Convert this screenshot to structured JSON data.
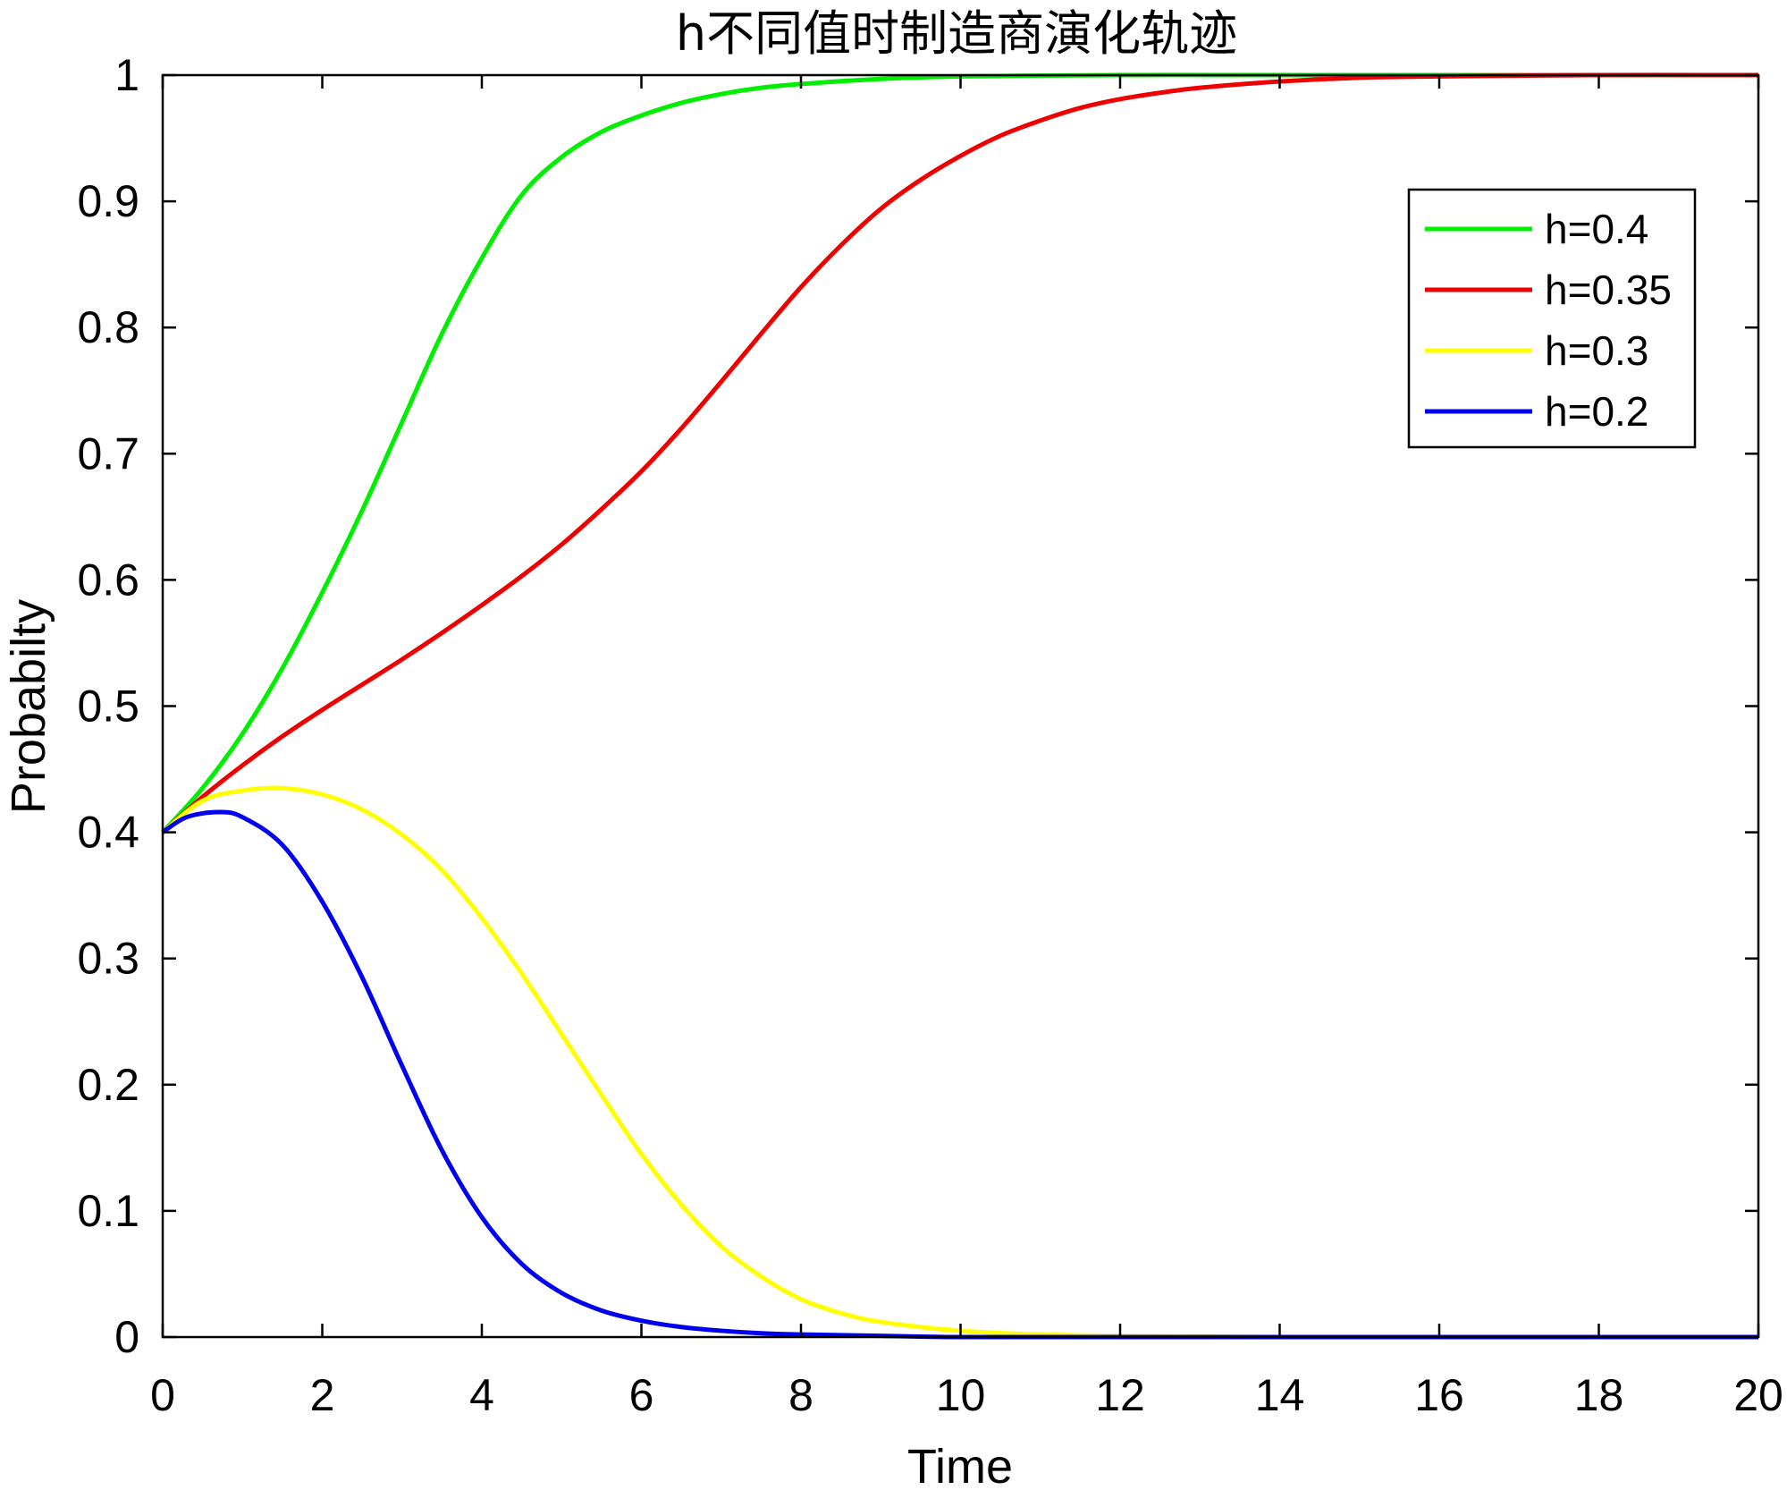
{
  "chart_data": {
    "type": "line",
    "title": "h不同值时制造商演化轨迹",
    "xlabel": "Time",
    "ylabel": "Probabilty",
    "xlim": [
      0,
      20
    ],
    "ylim": [
      0,
      1
    ],
    "x_ticks": [
      0,
      2,
      4,
      6,
      8,
      10,
      12,
      14,
      16,
      18,
      20
    ],
    "x_tick_labels": [
      "0",
      "2",
      "4",
      "6",
      "8",
      "10",
      "12",
      "14",
      "16",
      "18",
      "20"
    ],
    "y_ticks": [
      0,
      0.1,
      0.2,
      0.3,
      0.4,
      0.5,
      0.6,
      0.7,
      0.8,
      0.9,
      1
    ],
    "y_tick_labels": [
      "0",
      "0.1",
      "0.2",
      "0.3",
      "0.4",
      "0.5",
      "0.6",
      "0.7",
      "0.8",
      "0.9",
      "1"
    ],
    "grid": false,
    "legend_position": "top-right",
    "series": [
      {
        "name": "h=0.4",
        "color": "#00ee00",
        "x": [
          0,
          0.5,
          1,
          1.5,
          2,
          2.5,
          3,
          3.5,
          4,
          4.5,
          5,
          5.5,
          6,
          6.5,
          7,
          7.5,
          8,
          9,
          10,
          12,
          14,
          16,
          18,
          20
        ],
        "y": [
          0.4,
          0.435,
          0.478,
          0.53,
          0.59,
          0.655,
          0.725,
          0.795,
          0.855,
          0.905,
          0.935,
          0.955,
          0.968,
          0.978,
          0.985,
          0.99,
          0.993,
          0.997,
          0.999,
          1.0,
          1.0,
          1.0,
          1.0,
          1.0
        ]
      },
      {
        "name": "h=0.35",
        "color": "#ee0000",
        "x": [
          0,
          0.5,
          1,
          1.5,
          2,
          2.5,
          3,
          3.5,
          4,
          4.5,
          5,
          5.5,
          6,
          6.5,
          7,
          7.5,
          8,
          8.5,
          9,
          9.5,
          10,
          10.5,
          11,
          11.5,
          12,
          12.5,
          13,
          14,
          15,
          16,
          18,
          20
        ],
        "y": [
          0.4,
          0.428,
          0.453,
          0.476,
          0.497,
          0.517,
          0.537,
          0.558,
          0.58,
          0.603,
          0.628,
          0.656,
          0.686,
          0.72,
          0.757,
          0.795,
          0.832,
          0.865,
          0.894,
          0.917,
          0.936,
          0.952,
          0.964,
          0.974,
          0.981,
          0.986,
          0.99,
          0.995,
          0.998,
          0.999,
          1.0,
          1.0
        ]
      },
      {
        "name": "h=0.3",
        "color": "#ffff00",
        "x": [
          0,
          0.5,
          1,
          1.5,
          2,
          2.5,
          3,
          3.5,
          4,
          4.5,
          5,
          5.5,
          6,
          6.5,
          7,
          7.5,
          8,
          8.5,
          9,
          10,
          11,
          12,
          14,
          16,
          18,
          20
        ],
        "y": [
          0.4,
          0.425,
          0.433,
          0.435,
          0.43,
          0.418,
          0.398,
          0.37,
          0.332,
          0.288,
          0.24,
          0.192,
          0.145,
          0.105,
          0.072,
          0.048,
          0.03,
          0.019,
          0.012,
          0.005,
          0.002,
          0.001,
          0.0,
          0.0,
          0.0,
          0.0
        ]
      },
      {
        "name": "h=0.2",
        "color": "#0000ee",
        "x": [
          0,
          0.3,
          0.7,
          1,
          1.5,
          2,
          2.5,
          3,
          3.5,
          4,
          4.5,
          5,
          5.5,
          6,
          6.5,
          7,
          7.5,
          8,
          9,
          10,
          12,
          14,
          16,
          18,
          20
        ],
        "y": [
          0.4,
          0.412,
          0.416,
          0.412,
          0.39,
          0.345,
          0.285,
          0.215,
          0.148,
          0.095,
          0.058,
          0.035,
          0.021,
          0.013,
          0.008,
          0.005,
          0.003,
          0.002,
          0.001,
          0.0,
          0.0,
          0.0,
          0.0,
          0.0,
          0.0
        ]
      }
    ]
  }
}
